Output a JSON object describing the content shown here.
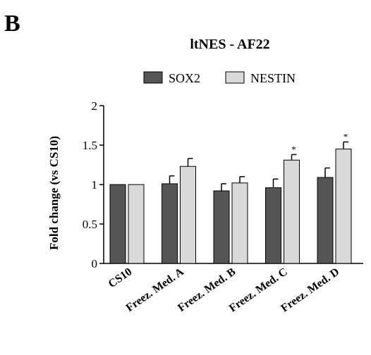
{
  "panel_label": "B",
  "chart_data": {
    "type": "bar",
    "title": "ltNES - AF22",
    "xlabel": "",
    "ylabel": "Fold change (vs CS10)",
    "ylim": [
      0,
      2
    ],
    "yticks": [
      "0",
      "0.5",
      "1",
      "1.5",
      "2"
    ],
    "yticks_values": [
      0,
      0.5,
      1,
      1.5,
      2
    ],
    "grid": false,
    "legend_position": "top",
    "categories": [
      "CS10",
      "Freez. Med. A",
      "Freez. Med. B",
      "Freez. Med. C",
      "Freez. Med. D"
    ],
    "series": [
      {
        "name": "SOX2",
        "color": "#555555",
        "values": [
          1.0,
          1.01,
          0.92,
          0.96,
          1.09
        ],
        "errors": [
          0.0,
          0.1,
          0.09,
          0.11,
          0.12
        ],
        "annotations": [
          "",
          "",
          "",
          "",
          ""
        ]
      },
      {
        "name": "NESTIN",
        "color": "#d9d9d9",
        "values": [
          1.0,
          1.23,
          1.02,
          1.31,
          1.45
        ],
        "errors": [
          0.0,
          0.1,
          0.08,
          0.07,
          0.09
        ],
        "annotations": [
          "",
          "",
          "",
          "*",
          "*"
        ]
      }
    ]
  }
}
